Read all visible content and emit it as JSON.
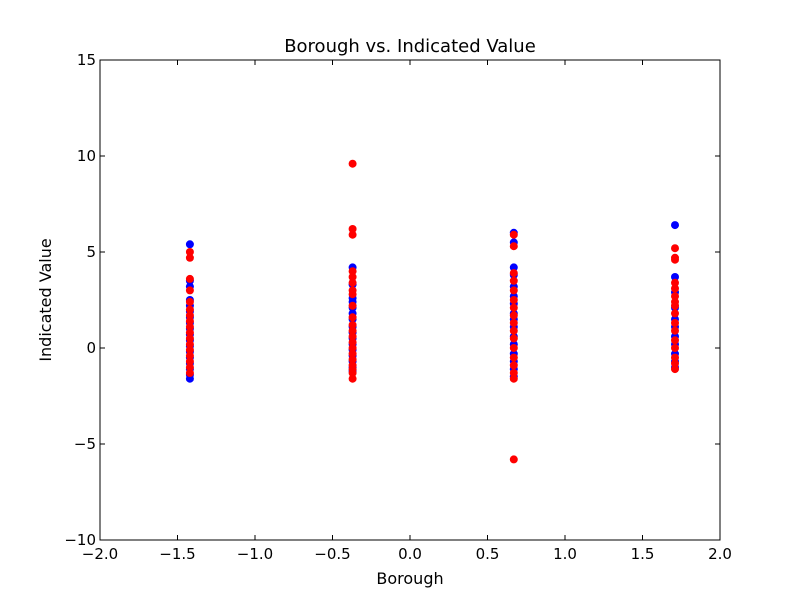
{
  "chart_data": {
    "type": "scatter",
    "title": "Borough vs. Indicated Value",
    "xlabel": "Borough",
    "ylabel": "Indicated Value",
    "xlim": [
      -2.0,
      2.0
    ],
    "ylim": [
      -10,
      15
    ],
    "x_ticks": [
      -2.0,
      -1.5,
      -1.0,
      -0.5,
      0.0,
      0.5,
      1.0,
      1.5,
      2.0
    ],
    "x_tick_labels": [
      "−2.0",
      "−1.5",
      "−1.0",
      "−0.5",
      "0.0",
      "0.5",
      "1.0",
      "1.5",
      "2.0"
    ],
    "y_ticks": [
      -10,
      -5,
      0,
      5,
      10,
      15
    ],
    "y_tick_labels": [
      "−10",
      "−5",
      "0",
      "5",
      "10",
      "15"
    ],
    "grid": false,
    "legend": false,
    "series": [
      {
        "color": "#0000ff",
        "points": [
          [
            -1.42,
            5.4
          ],
          [
            -1.42,
            3.5
          ],
          [
            -1.42,
            3.2
          ],
          [
            -1.42,
            2.5
          ],
          [
            -1.42,
            2.2
          ],
          [
            -1.42,
            1.9
          ],
          [
            -1.42,
            1.6
          ],
          [
            -1.42,
            1.3
          ],
          [
            -1.42,
            1.0
          ],
          [
            -1.42,
            0.7
          ],
          [
            -1.42,
            0.4
          ],
          [
            -1.42,
            0.1
          ],
          [
            -1.42,
            -0.2
          ],
          [
            -1.42,
            -0.5
          ],
          [
            -1.42,
            -0.8
          ],
          [
            -1.42,
            -1.1
          ],
          [
            -1.42,
            -1.4
          ],
          [
            -1.42,
            -1.6
          ],
          [
            -0.37,
            4.2
          ],
          [
            -0.37,
            3.3
          ],
          [
            -0.37,
            2.6
          ],
          [
            -0.37,
            2.4
          ],
          [
            -0.37,
            2.1
          ],
          [
            -0.37,
            1.8
          ],
          [
            -0.37,
            1.5
          ],
          [
            -0.37,
            1.1
          ],
          [
            -0.37,
            0.8
          ],
          [
            -0.37,
            0.5
          ],
          [
            -0.37,
            0.2
          ],
          [
            -0.37,
            -0.1
          ],
          [
            -0.37,
            -0.4
          ],
          [
            -0.37,
            -0.7
          ],
          [
            -0.37,
            -1.0
          ],
          [
            -0.37,
            -1.2
          ],
          [
            0.67,
            6.0
          ],
          [
            0.67,
            5.5
          ],
          [
            0.67,
            4.2
          ],
          [
            0.67,
            3.8
          ],
          [
            0.67,
            3.2
          ],
          [
            0.67,
            2.7
          ],
          [
            0.67,
            2.3
          ],
          [
            0.67,
            1.8
          ],
          [
            0.67,
            1.5
          ],
          [
            0.67,
            1.1
          ],
          [
            0.67,
            0.6
          ],
          [
            0.67,
            0.2
          ],
          [
            0.67,
            -0.3
          ],
          [
            0.67,
            -0.7
          ],
          [
            0.67,
            -1.1
          ],
          [
            0.67,
            -1.5
          ],
          [
            1.71,
            6.4
          ],
          [
            1.71,
            3.7
          ],
          [
            1.71,
            2.9
          ],
          [
            1.71,
            2.1
          ],
          [
            1.71,
            1.5
          ],
          [
            1.71,
            1.1
          ],
          [
            1.71,
            0.6
          ],
          [
            1.71,
            0.2
          ],
          [
            1.71,
            -0.3
          ],
          [
            1.71,
            -0.7
          ],
          [
            1.71,
            -1.0
          ]
        ]
      },
      {
        "color": "#ff0000",
        "points": [
          [
            -1.42,
            5.0
          ],
          [
            -1.42,
            4.7
          ],
          [
            -1.42,
            3.6
          ],
          [
            -1.42,
            3.0
          ],
          [
            -1.42,
            2.4
          ],
          [
            -1.42,
            2.0
          ],
          [
            -1.42,
            1.7
          ],
          [
            -1.42,
            1.4
          ],
          [
            -1.42,
            1.1
          ],
          [
            -1.42,
            0.8
          ],
          [
            -1.42,
            0.5
          ],
          [
            -1.42,
            0.2
          ],
          [
            -1.42,
            -0.1
          ],
          [
            -1.42,
            -0.4
          ],
          [
            -1.42,
            -0.7
          ],
          [
            -1.42,
            -1.0
          ],
          [
            -1.42,
            -1.3
          ],
          [
            -0.37,
            9.6
          ],
          [
            -0.37,
            6.2
          ],
          [
            -0.37,
            5.9
          ],
          [
            -0.37,
            4.0
          ],
          [
            -0.37,
            3.7
          ],
          [
            -0.37,
            3.4
          ],
          [
            -0.37,
            3.0
          ],
          [
            -0.37,
            2.8
          ],
          [
            -0.37,
            2.2
          ],
          [
            -0.37,
            1.6
          ],
          [
            -0.37,
            1.2
          ],
          [
            -0.37,
            0.9
          ],
          [
            -0.37,
            0.6
          ],
          [
            -0.37,
            0.3
          ],
          [
            -0.37,
            0.0
          ],
          [
            -0.37,
            -0.3
          ],
          [
            -0.37,
            -0.6
          ],
          [
            -0.37,
            -0.9
          ],
          [
            -0.37,
            -1.1
          ],
          [
            -0.37,
            -1.3
          ],
          [
            -0.37,
            -1.6
          ],
          [
            0.67,
            5.9
          ],
          [
            0.67,
            5.3
          ],
          [
            0.67,
            3.9
          ],
          [
            0.67,
            3.5
          ],
          [
            0.67,
            3.0
          ],
          [
            0.67,
            2.5
          ],
          [
            0.67,
            2.1
          ],
          [
            0.67,
            1.7
          ],
          [
            0.67,
            1.3
          ],
          [
            0.67,
            0.9
          ],
          [
            0.67,
            0.5
          ],
          [
            0.67,
            0.0
          ],
          [
            0.67,
            -0.5
          ],
          [
            0.67,
            -0.9
          ],
          [
            0.67,
            -1.3
          ],
          [
            0.67,
            -1.6
          ],
          [
            0.67,
            -5.8
          ],
          [
            1.71,
            5.2
          ],
          [
            1.71,
            4.7
          ],
          [
            1.71,
            4.6
          ],
          [
            1.71,
            3.4
          ],
          [
            1.71,
            3.1
          ],
          [
            1.71,
            2.7
          ],
          [
            1.71,
            2.4
          ],
          [
            1.71,
            2.2
          ],
          [
            1.71,
            1.8
          ],
          [
            1.71,
            1.3
          ],
          [
            1.71,
            0.9
          ],
          [
            1.71,
            0.4
          ],
          [
            1.71,
            0.0
          ],
          [
            1.71,
            -0.5
          ],
          [
            1.71,
            -0.8
          ],
          [
            1.71,
            -1.1
          ]
        ]
      }
    ]
  }
}
